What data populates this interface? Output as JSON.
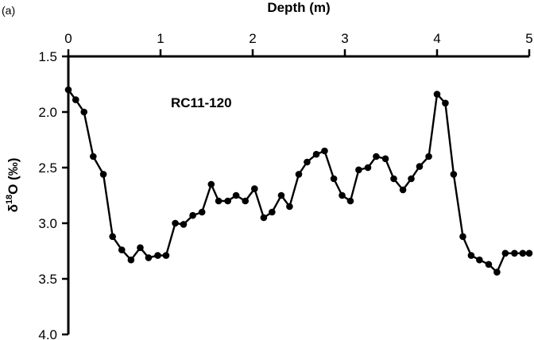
{
  "panel_label": "(a)",
  "chart_data": {
    "type": "line",
    "title": "",
    "xlabel": "Depth (m)",
    "ylabel": "δ18O (‰)",
    "ylabel_parts": {
      "delta": "δ",
      "sup": "18",
      "rest": "O (‰)"
    },
    "annotation": "RC11-120",
    "xlim": [
      0,
      5
    ],
    "ylim": [
      1.5,
      4.0
    ],
    "y_inverted": true,
    "x_axis_position": "top",
    "x_ticks": [
      0,
      1,
      2,
      3,
      4,
      5
    ],
    "x_tick_labels": [
      "0",
      "1",
      "2",
      "3",
      "4",
      "5"
    ],
    "y_ticks": [
      1.5,
      2.0,
      2.5,
      3.0,
      3.5,
      4.0
    ],
    "y_tick_labels": [
      "1.5",
      "2.0",
      "2.5",
      "3.0",
      "3.5",
      "4.0"
    ],
    "grid": false,
    "series": [
      {
        "color": "#000000",
        "marker": "circle",
        "x": [
          0.0,
          0.08,
          0.17,
          0.27,
          0.38,
          0.48,
          0.58,
          0.68,
          0.78,
          0.87,
          0.97,
          1.06,
          1.16,
          1.25,
          1.35,
          1.45,
          1.55,
          1.63,
          1.73,
          1.82,
          1.92,
          2.02,
          2.12,
          2.21,
          2.31,
          2.4,
          2.5,
          2.59,
          2.69,
          2.78,
          2.88,
          2.97,
          3.06,
          3.15,
          3.25,
          3.34,
          3.44,
          3.53,
          3.63,
          3.72,
          3.81,
          3.91,
          4.0,
          4.09,
          4.18,
          4.28,
          4.37,
          4.46,
          4.56,
          4.65,
          4.74,
          4.84,
          4.93,
          5.0
        ],
        "y": [
          1.8,
          1.89,
          2.0,
          2.4,
          2.56,
          3.12,
          3.24,
          3.33,
          3.22,
          3.31,
          3.29,
          3.29,
          3.0,
          3.01,
          2.93,
          2.9,
          2.65,
          2.8,
          2.8,
          2.75,
          2.8,
          2.69,
          2.95,
          2.9,
          2.75,
          2.85,
          2.56,
          2.45,
          2.38,
          2.35,
          2.6,
          2.75,
          2.8,
          2.52,
          2.5,
          2.4,
          2.42,
          2.6,
          2.7,
          2.6,
          2.49,
          2.4,
          1.84,
          1.92,
          2.56,
          3.12,
          3.29,
          3.33,
          3.37,
          3.44,
          3.27,
          3.27,
          3.27,
          3.27
        ]
      }
    ]
  }
}
